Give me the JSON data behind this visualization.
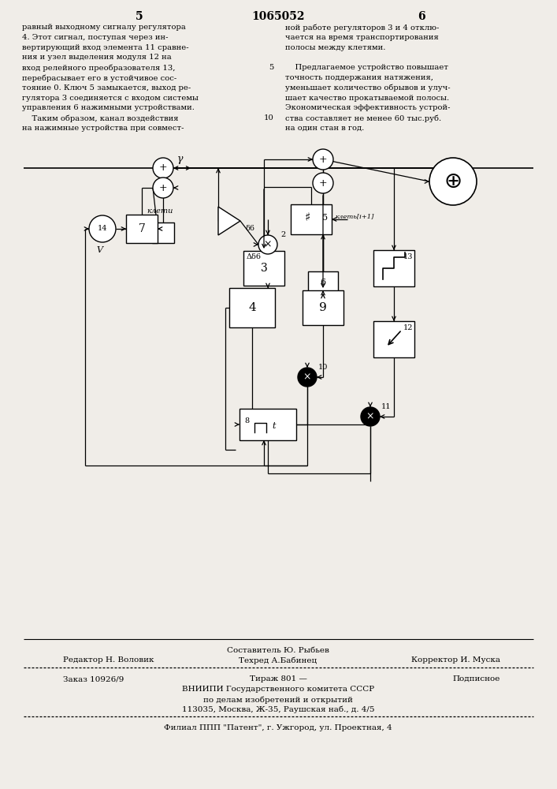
{
  "page_num_left": "5",
  "page_num_center": "1065052",
  "page_num_right": "6",
  "col1_lines": [
    "равный выходному сигналу регулятора",
    "4. Этот сигнал, поступая через ин-",
    "вертирующий вход элемента 11 сравне-",
    "ния и узел выделения модуля 12 на",
    "вход релейного преобразователя 13,",
    "перебрасывает его в устойчивое сос-",
    "тояние 0. Ключ 5 замыкается, выход ре-",
    "гулятора 3 соединяется с входом системы",
    "управления 6 нажимными устройствами.",
    "    Таким образом, канал воздействия",
    "на нажимные устройства при совмест-"
  ],
  "col2_lines": [
    "ной работе регуляторов 3 и 4 отклю-",
    "чается на время транспортирования",
    "полосы между клетями.",
    "",
    "    Предлагаемое устройство повышает",
    "точность поддержания натяжения,",
    "уменьшает количество обрывов и улуч-",
    "шает качество прокатываемой полосы.",
    "Экономическая эффективность устрой-",
    "ства составляет не менее 60 тыс.руб.",
    "на один стан в год."
  ],
  "col2_line_numbers": [
    "",
    "",
    "",
    "",
    "5",
    "",
    "",
    "",
    "",
    "10",
    ""
  ],
  "footer_editor": "Редактор Н. Воловик",
  "footer_composer": "Составитель Ю. Рыбьев",
  "footer_tech": "Техред А.Бабинец",
  "footer_corrector": "Корректор И. Муска",
  "footer_order": "Заказ 10926/9",
  "footer_circulation": "Тираж 801 —",
  "footer_signed": "Подписное",
  "footer_vniipи": "ВНИИПИ Государственного комитета СССР",
  "footer_dept": "по делам изобретений и открытий",
  "footer_addr": "113035, Москва, Ж-35, Раушская наб., д. 4/5",
  "footer_filial": "Филиал ППП \"Патент\", г. Ужгород, ул. Проектная, 4",
  "bg_color": "#f0ede8"
}
